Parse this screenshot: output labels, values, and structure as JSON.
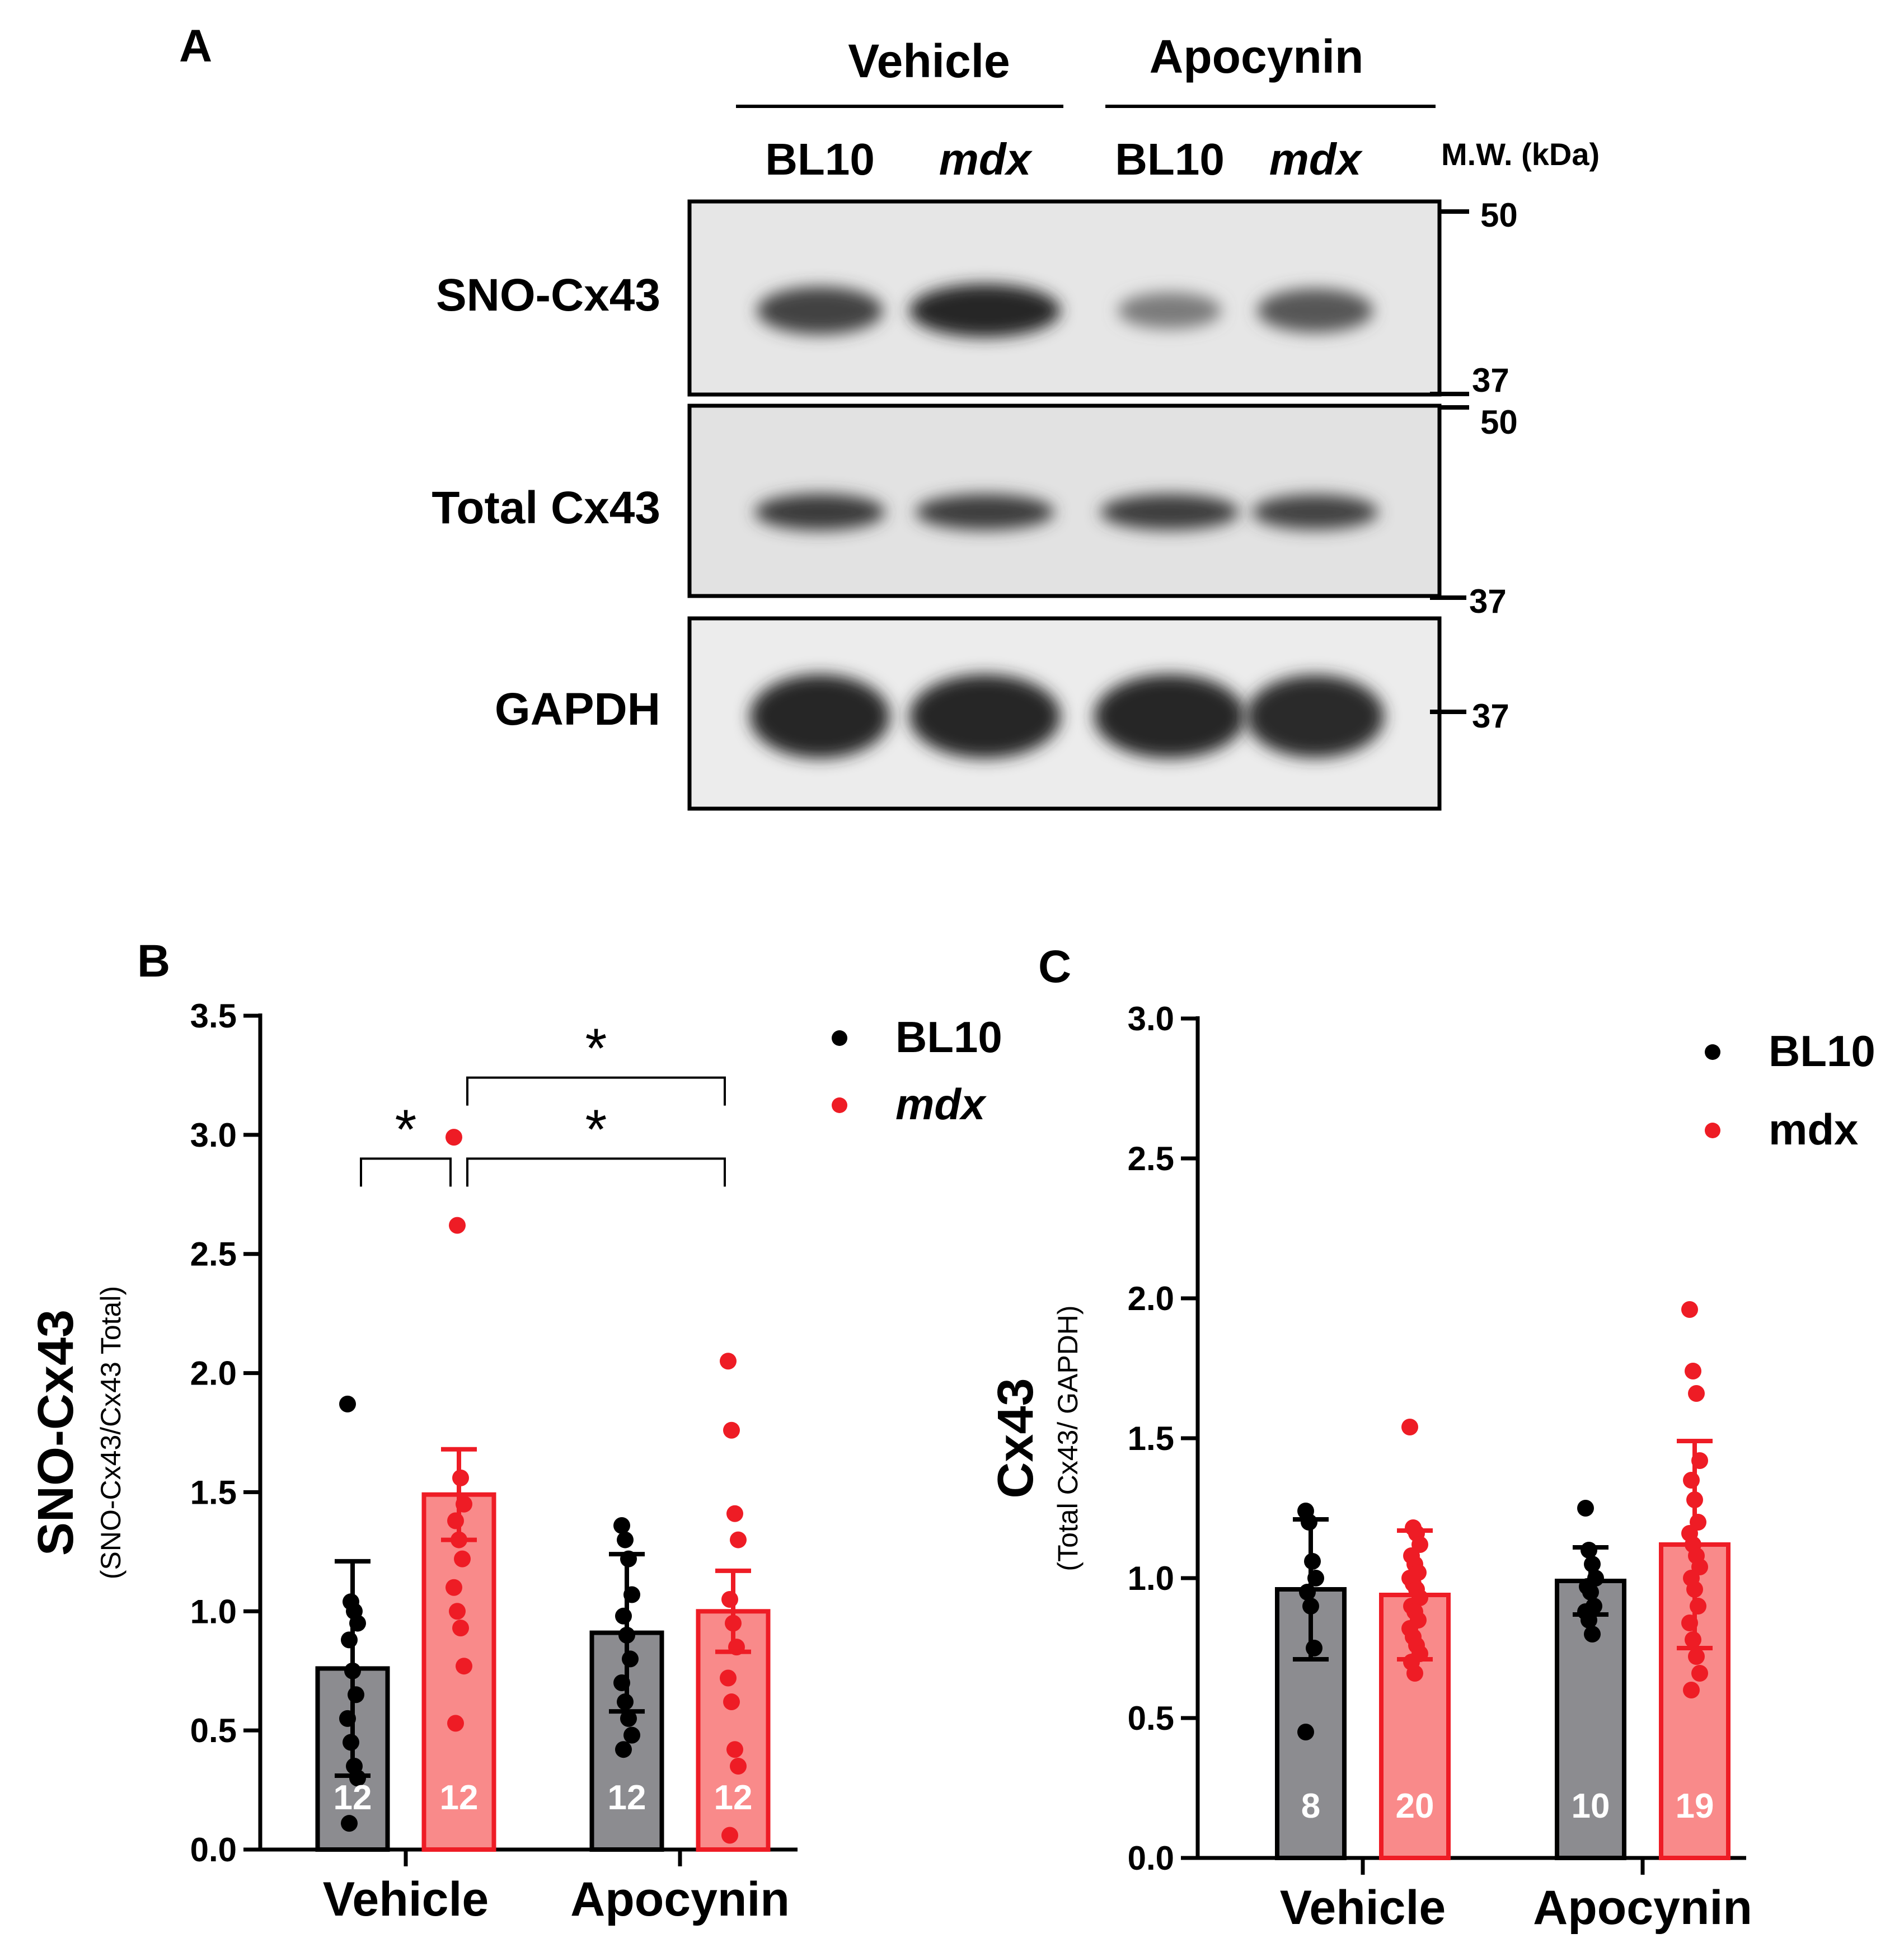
{
  "colors": {
    "bl10": "#000000",
    "bl10_bar": "#8c8c90",
    "mdx": "#ee1c25",
    "mdx_bar": "#f98a8a"
  },
  "panel_a": {
    "letter": "A",
    "groups": [
      "Vehicle",
      "Apocynin"
    ],
    "lanes": [
      "BL10",
      "mdx",
      "BL10",
      "mdx"
    ],
    "mw_title": "M.W. (kDa)",
    "rows": [
      {
        "label": "SNO-Cx43",
        "mw_top": "50",
        "mw_bottom": "37"
      },
      {
        "label": "Total Cx43",
        "mw_top": "50",
        "mw_bottom": "37"
      },
      {
        "label": "GAPDH",
        "mw_mid": "37"
      }
    ],
    "band_intensity": [
      [
        0.78,
        1.0,
        0.3,
        0.62
      ],
      [
        0.85,
        0.82,
        0.82,
        0.78
      ],
      [
        1.0,
        1.0,
        1.0,
        0.97
      ]
    ]
  },
  "chart_data": [
    {
      "letter": "B",
      "type": "bar",
      "categories": [
        "Vehicle",
        "Apocynin"
      ],
      "ylabel": "SNO-Cx43",
      "ylabel_sub": "(SNO-Cx43/Cx43 Total)",
      "ylim": [
        0,
        3.5
      ],
      "yticks": [
        "0.0",
        "0.5",
        "1.0",
        "1.5",
        "2.0",
        "2.5",
        "3.0",
        "3.5"
      ],
      "legend": {
        "position": "top-right",
        "entries": [
          "BL10",
          "mdx"
        ],
        "italic_mdx": true
      },
      "series": [
        {
          "name": "BL10",
          "values": [
            0.76,
            0.91
          ],
          "err": [
            0.45,
            0.33
          ],
          "n": [
            "12",
            "12"
          ],
          "points": [
            [
              1.87,
              1.04,
              1.0,
              0.95,
              0.88,
              0.75,
              0.65,
              0.55,
              0.45,
              0.35,
              0.3,
              0.11
            ],
            [
              1.36,
              1.3,
              1.22,
              1.07,
              0.98,
              0.9,
              0.8,
              0.7,
              0.62,
              0.55,
              0.48,
              0.42
            ]
          ]
        },
        {
          "name": "mdx",
          "values": [
            1.49,
            1.0
          ],
          "err": [
            0.19,
            0.17
          ],
          "n": [
            "12",
            "12"
          ],
          "points": [
            [
              2.99,
              2.62,
              1.56,
              1.45,
              1.38,
              1.3,
              1.22,
              1.1,
              1.0,
              0.93,
              0.77,
              0.53
            ],
            [
              2.05,
              1.76,
              1.41,
              1.3,
              1.05,
              0.95,
              0.85,
              0.72,
              0.62,
              0.42,
              0.35,
              0.06
            ]
          ]
        }
      ],
      "significance": [
        {
          "label": "*",
          "from": [
            0,
            0
          ],
          "to": [
            0,
            1
          ],
          "y": 2.9
        },
        {
          "label": "*",
          "from": [
            0,
            1
          ],
          "to": [
            1,
            1
          ],
          "y": 2.9
        },
        {
          "label": "*",
          "from": [
            0,
            1
          ],
          "to": [
            1,
            1
          ],
          "y": 3.24
        }
      ]
    },
    {
      "letter": "C",
      "type": "bar",
      "categories": [
        "Vehicle",
        "Apocynin"
      ],
      "ylabel": "Cx43",
      "ylabel_sub": "(Total Cx43/ GAPDH)",
      "ylim": [
        0,
        3.0
      ],
      "yticks": [
        "0.0",
        "0.5",
        "1.0",
        "1.5",
        "2.0",
        "2.5",
        "3.0"
      ],
      "legend": {
        "position": "top-right",
        "entries": [
          "BL10",
          "mdx"
        ],
        "italic_mdx": false
      },
      "series": [
        {
          "name": "BL10",
          "values": [
            0.96,
            0.99
          ],
          "err": [
            0.25,
            0.12
          ],
          "n": [
            "8",
            "10"
          ],
          "points": [
            [
              1.24,
              1.2,
              1.06,
              1.0,
              0.95,
              0.9,
              0.75,
              0.45
            ],
            [
              1.25,
              1.1,
              1.05,
              1.0,
              0.97,
              0.95,
              0.9,
              0.88,
              0.85,
              0.8
            ]
          ]
        },
        {
          "name": "mdx",
          "values": [
            0.94,
            1.12
          ],
          "err": [
            0.23,
            0.37
          ],
          "n": [
            "20",
            "19"
          ],
          "points": [
            [
              1.54,
              1.18,
              1.16,
              1.12,
              1.08,
              1.05,
              1.02,
              1.0,
              0.98,
              0.96,
              0.93,
              0.9,
              0.88,
              0.85,
              0.82,
              0.79,
              0.76,
              0.73,
              0.7,
              0.66
            ],
            [
              1.96,
              1.74,
              1.66,
              1.42,
              1.35,
              1.28,
              1.2,
              1.16,
              1.12,
              1.08,
              1.04,
              1.0,
              0.96,
              0.9,
              0.84,
              0.78,
              0.72,
              0.66,
              0.6
            ]
          ]
        }
      ],
      "significance": []
    }
  ]
}
